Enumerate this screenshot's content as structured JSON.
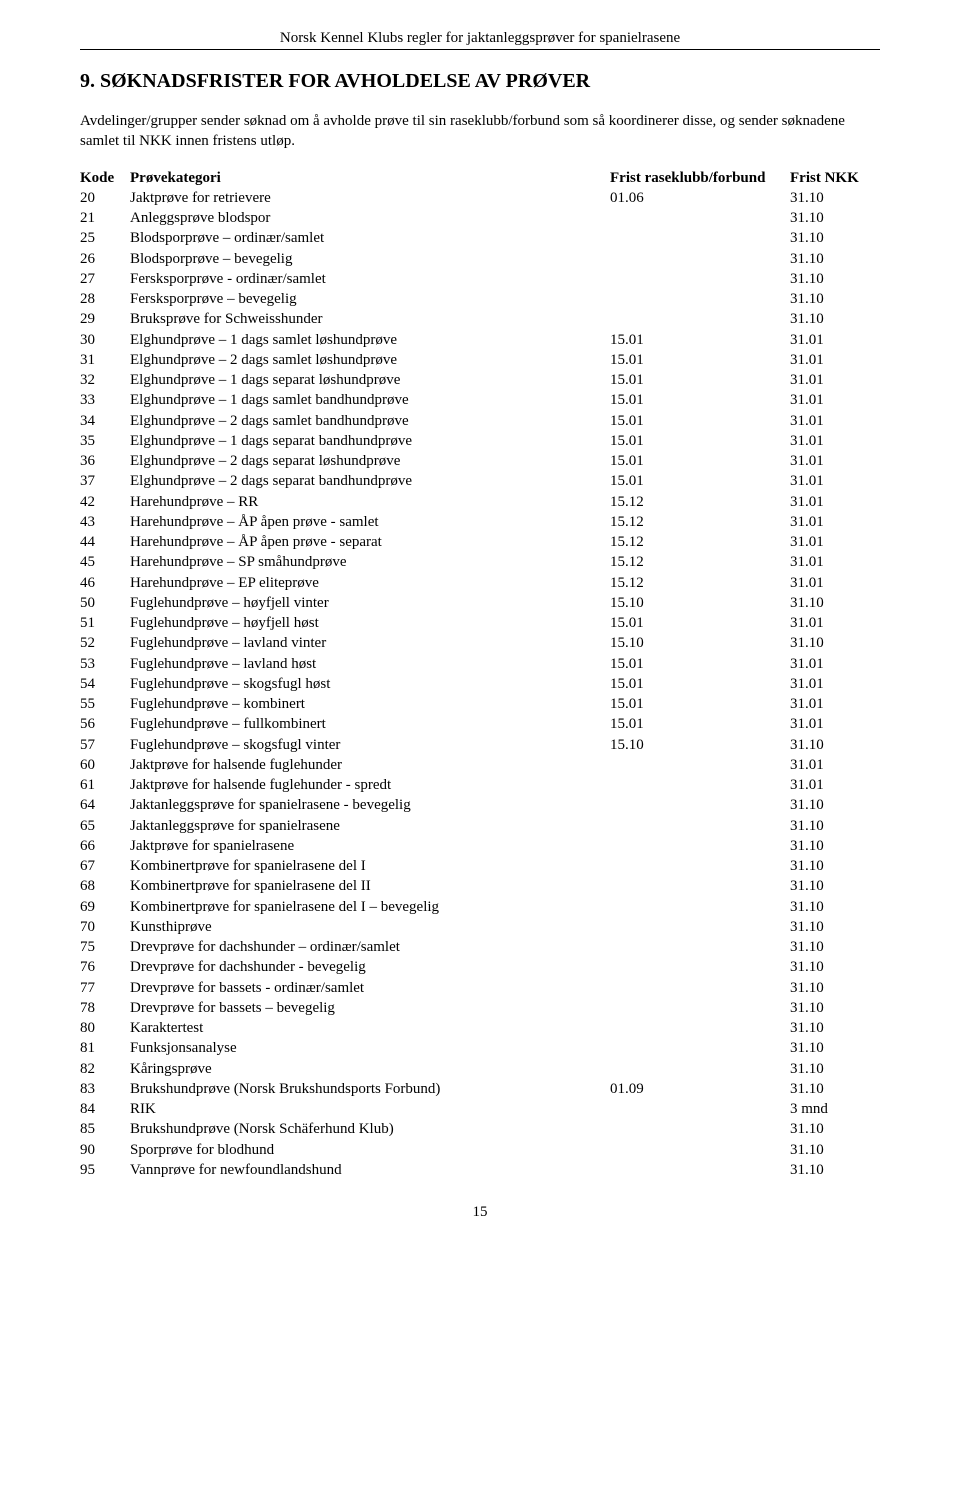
{
  "header": "Norsk Kennel Klubs regler for jaktanleggsprøver for spanielrasene",
  "section_title": "9. SØKNADSFRISTER FOR AVHOLDELSE AV PRØVER",
  "intro": "Avdelinger/grupper sender søknad om å avholde prøve til sin raseklubb/forbund som så koordinerer disse, og sender søknadene samlet til NKK innen fristens utløp.",
  "columns": {
    "kode": "Kode",
    "kategori": "Prøvekategori",
    "frist1": "Frist raseklubb/forbund",
    "frist2": "Frist NKK"
  },
  "rows": [
    {
      "kode": "20",
      "kat": "Jaktprøve for retrievere",
      "f1": "01.06",
      "f2": "31.10"
    },
    {
      "kode": "21",
      "kat": "Anleggsprøve   blodspor",
      "f1": "",
      "f2": "31.10"
    },
    {
      "kode": "25",
      "kat": "Blodsporprøve – ordinær/samlet",
      "f1": "",
      "f2": "31.10"
    },
    {
      "kode": "26",
      "kat": "Blodsporprøve – bevegelig",
      "f1": "",
      "f2": "31.10"
    },
    {
      "kode": "27",
      "kat": "Fersksporprøve - ordinær/samlet",
      "f1": "",
      "f2": "31.10"
    },
    {
      "kode": "28",
      "kat": "Fersksporprøve – bevegelig",
      "f1": "",
      "f2": "31.10"
    },
    {
      "kode": "29",
      "kat": "Bruksprøve for Schweisshunder",
      "f1": "",
      "f2": "31.10"
    },
    {
      "kode": "30",
      "kat": "Elghundprøve – 1 dags samlet løshundprøve",
      "f1": "15.01",
      "f2": "31.01"
    },
    {
      "kode": "31",
      "kat": "Elghundprøve – 2 dags samlet løshundprøve",
      "f1": "15.01",
      "f2": "31.01"
    },
    {
      "kode": "32",
      "kat": "Elghundprøve – 1 dags separat løshundprøve",
      "f1": "15.01",
      "f2": "31.01"
    },
    {
      "kode": "33",
      "kat": "Elghundprøve – 1 dags samlet bandhundprøve",
      "f1": "15.01",
      "f2": "31.01"
    },
    {
      "kode": "34",
      "kat": "Elghundprøve – 2 dags samlet bandhundprøve",
      "f1": "15.01",
      "f2": "31.01"
    },
    {
      "kode": "35",
      "kat": "Elghundprøve – 1 dags separat bandhundprøve",
      "f1": "15.01",
      "f2": "31.01"
    },
    {
      "kode": "36",
      "kat": "Elghundprøve – 2 dags separat løshundprøve",
      "f1": "15.01",
      "f2": "31.01"
    },
    {
      "kode": "37",
      "kat": "Elghundprøve – 2 dags separat bandhundprøve",
      "f1": "15.01",
      "f2": "31.01"
    },
    {
      "kode": "42",
      "kat": "Harehundprøve – RR",
      "f1": "15.12",
      "f2": "31.01"
    },
    {
      "kode": "43",
      "kat": "Harehundprøve – ÅP åpen prøve - samlet",
      "f1": "15.12",
      "f2": "31.01"
    },
    {
      "kode": "44",
      "kat": "Harehundprøve – ÅP åpen prøve - separat",
      "f1": "15.12",
      "f2": "31.01"
    },
    {
      "kode": "45",
      "kat": "Harehundprøve – SP småhundprøve",
      "f1": "15.12",
      "f2": "31.01"
    },
    {
      "kode": "46",
      "kat": "Harehundprøve – EP eliteprøve",
      "f1": "15.12",
      "f2": "31.01"
    },
    {
      "kode": "50",
      "kat": "Fuglehundprøve – høyfjell vinter",
      "f1": "15.10",
      "f2": "31.10"
    },
    {
      "kode": "51",
      "kat": "Fuglehundprøve – høyfjell høst",
      "f1": "15.01",
      "f2": "31.01"
    },
    {
      "kode": "52",
      "kat": "Fuglehundprøve – lavland vinter",
      "f1": "15.10",
      "f2": "31.10"
    },
    {
      "kode": "53",
      "kat": "Fuglehundprøve – lavland høst",
      "f1": "15.01",
      "f2": "31.01"
    },
    {
      "kode": "54",
      "kat": "Fuglehundprøve – skogsfugl høst",
      "f1": "15.01",
      "f2": "31.01"
    },
    {
      "kode": "55",
      "kat": "Fuglehundprøve – kombinert",
      "f1": "15.01",
      "f2": "31.01"
    },
    {
      "kode": "56",
      "kat": "Fuglehundprøve – fullkombinert",
      "f1": "15.01",
      "f2": "31.01"
    },
    {
      "kode": "57",
      "kat": "Fuglehundprøve – skogsfugl    vinter",
      "f1": "15.10",
      "f2": "31.10"
    },
    {
      "kode": "60",
      "kat": "Jaktprøve for halsende fuglehunder",
      "f1": "",
      "f2": "31.01"
    },
    {
      "kode": "61",
      "kat": "Jaktprøve for halsende fuglehunder - spredt",
      "f1": "",
      "f2": "31.01"
    },
    {
      "kode": "64",
      "kat": "Jaktanleggsprøve for spanielrasene - bevegelig",
      "f1": "",
      "f2": "31.10"
    },
    {
      "kode": "65",
      "kat": "Jaktanleggsprøve for spanielrasene",
      "f1": "",
      "f2": "31.10"
    },
    {
      "kode": "66",
      "kat": "Jaktprøve for spanielrasene",
      "f1": "",
      "f2": "31.10"
    },
    {
      "kode": "67",
      "kat": "Kombinertprøve for spanielrasene del I",
      "f1": "",
      "f2": "31.10"
    },
    {
      "kode": "68",
      "kat": "Kombinertprøve for spanielrasene del II",
      "f1": "",
      "f2": "31.10"
    },
    {
      "kode": "69",
      "kat": "Kombinertprøve for spanielrasene del I – bevegelig",
      "f1": "",
      "f2": "31.10"
    },
    {
      "kode": "70",
      "kat": "Kunsthiprøve",
      "f1": "",
      "f2": "31.10"
    },
    {
      "kode": "75",
      "kat": "Drevprøve for dachshunder – ordinær/samlet",
      "f1": "",
      "f2": "31.10"
    },
    {
      "kode": "76",
      "kat": "Drevprøve for dachshunder - bevegelig",
      "f1": "",
      "f2": "31.10"
    },
    {
      "kode": "77",
      "kat": "Drevprøve for bassets - ordinær/samlet",
      "f1": "",
      "f2": "31.10"
    },
    {
      "kode": "78",
      "kat": "Drevprøve for bassets – bevegelig",
      "f1": "",
      "f2": "31.10"
    },
    {
      "kode": "80",
      "kat": "Karaktertest",
      "f1": "",
      "f2": "31.10"
    },
    {
      "kode": "81",
      "kat": "Funksjonsanalyse",
      "f1": "",
      "f2": "31.10"
    },
    {
      "kode": "82",
      "kat": "Kåringsprøve",
      "f1": "",
      "f2": "31.10"
    },
    {
      "kode": "83",
      "kat": "Brukshundprøve (Norsk Brukshundsports Forbund)",
      "f1": "01.09",
      "f2": "31.10"
    },
    {
      "kode": "84",
      "kat": "RIK",
      "f1": "",
      "f2": "3 mnd"
    },
    {
      "kode": "85",
      "kat": "Brukshundprøve (Norsk Schäferhund Klub)",
      "f1": "",
      "f2": "31.10"
    },
    {
      "kode": "90",
      "kat": "Sporprøve for blodhund",
      "f1": "",
      "f2": "31.10"
    },
    {
      "kode": "95",
      "kat": "Vannprøve for newfoundlandshund",
      "f1": "",
      "f2": "31.10"
    }
  ],
  "page_number": "15"
}
